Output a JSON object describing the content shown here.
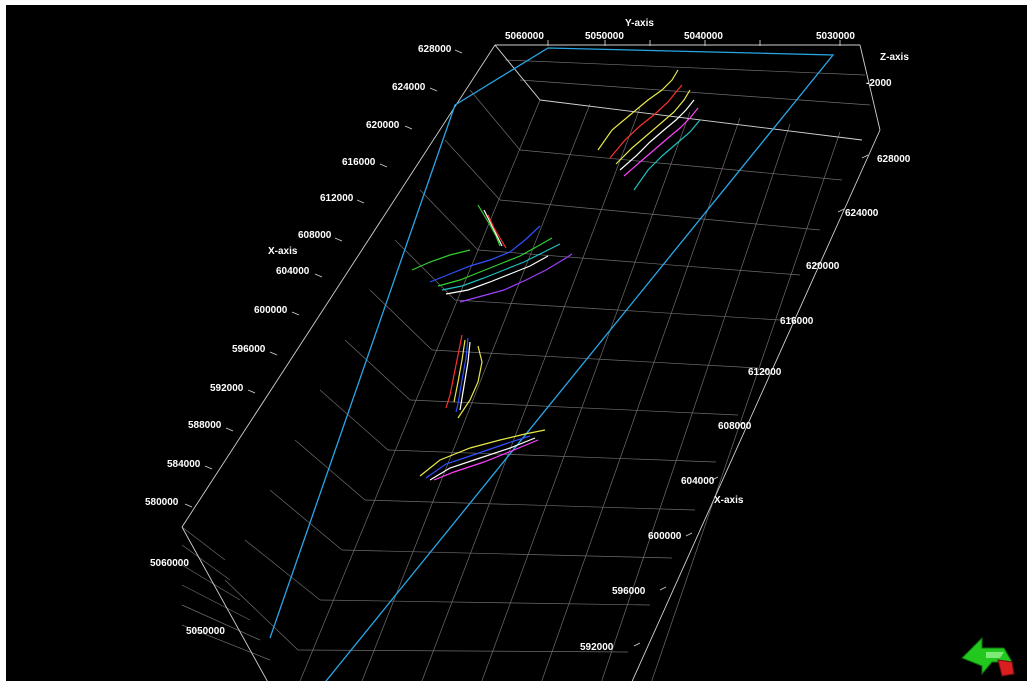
{
  "viewer": {
    "background": "#000000",
    "outline_color": "#2aa6e8",
    "grid_color": "#6e6e6e",
    "orientation_icon": "green-orientation-arrow-icon"
  },
  "axes": {
    "y_axis": {
      "title": "Y-axis",
      "ticks": [
        "5060000",
        "5050000",
        "5040000",
        "5030000"
      ]
    },
    "z_axis": {
      "title": "Z-axis",
      "ticks": [
        "-2000"
      ]
    },
    "x_axis_left": {
      "title": "X-axis",
      "ticks": [
        "628000",
        "624000",
        "620000",
        "616000",
        "612000",
        "608000",
        "604000",
        "600000",
        "596000",
        "592000",
        "588000",
        "584000",
        "580000"
      ]
    },
    "x_axis_right": {
      "title": "X-axis",
      "ticks": [
        "628000",
        "624000",
        "620000",
        "616000",
        "612000",
        "608000",
        "604000",
        "600000",
        "596000",
        "592000"
      ]
    },
    "y_axis_lower": {
      "ticks": [
        "5060000",
        "5050000"
      ]
    }
  },
  "well_colors": [
    "#e8e84a",
    "#ff3030",
    "#ffffff",
    "#ff40ff",
    "#20c0c0",
    "#3050ff",
    "#30d030",
    "#a040ff"
  ]
}
